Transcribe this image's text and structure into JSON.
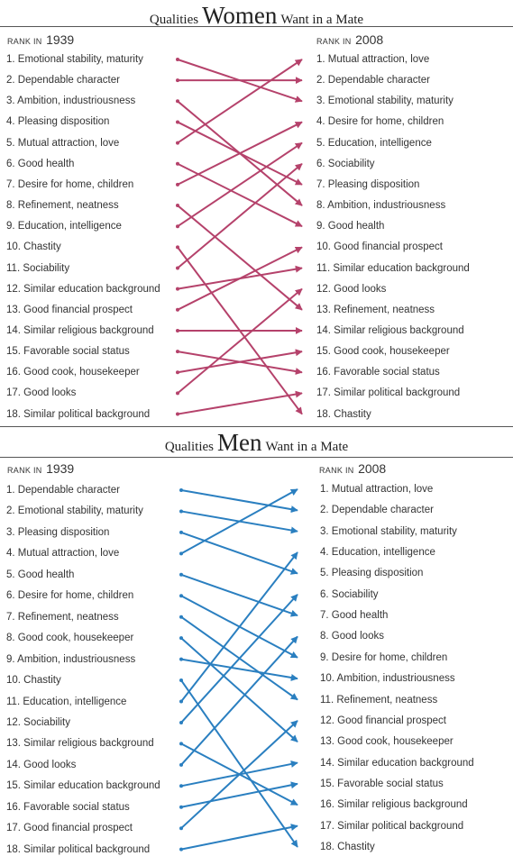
{
  "women": {
    "title_small_1": "Qualities",
    "title_big": "Women",
    "title_small_2": "Want in a Mate",
    "rank_label": "RANK IN",
    "year_left": "1939",
    "year_right": "2008",
    "color": "#b5426b",
    "left": [
      "1. Emotional stability, maturity",
      "2. Dependable character",
      "3. Ambition, industriousness",
      "4. Pleasing disposition",
      "5. Mutual attraction, love",
      "6. Good health",
      "7. Desire for home, children",
      "8. Refinement, neatness",
      "9. Education, intelligence",
      "10. Chastity",
      "11. Sociability",
      "12. Similar education background",
      "13. Good financial prospect",
      "14. Similar religious background",
      "15. Favorable social status",
      "16. Good cook, housekeeper",
      "17. Good looks",
      "18. Similar political background"
    ],
    "right": [
      "1. Mutual attraction, love",
      "2. Dependable character",
      "3. Emotional stability, maturity",
      "4. Desire for home, children",
      "5. Education, intelligence",
      "6. Sociability",
      "7. Pleasing disposition",
      "8. Ambition, industriousness",
      "9. Good health",
      "10. Good financial prospect",
      "11. Similar education background",
      "12. Good looks",
      "13. Refinement, neatness",
      "14. Similar religious background",
      "15. Good cook, housekeeper",
      "16. Favorable social status",
      "17. Similar political background",
      "18. Chastity"
    ],
    "mapping": [
      3,
      2,
      8,
      7,
      1,
      9,
      4,
      13,
      5,
      18,
      6,
      11,
      10,
      14,
      16,
      15,
      12,
      17
    ]
  },
  "men": {
    "title_small_1": "Qualities",
    "title_big": "Men",
    "title_small_2": "Want in a Mate",
    "rank_label": "RANK IN",
    "year_left": "1939",
    "year_right": "2008",
    "color": "#2a7fc0",
    "left": [
      "1. Dependable character",
      "2. Emotional stability, maturity",
      "3. Pleasing disposition",
      "4. Mutual attraction, love",
      "5. Good health",
      "6. Desire for home, children",
      "7. Refinement, neatness",
      "8. Good cook, housekeeper",
      "9. Ambition, industriousness",
      "10. Chastity",
      "11. Education, intelligence",
      "12. Sociability",
      "13. Similar religious background",
      "14. Good looks",
      "15. Similar education background",
      "16. Favorable social status",
      "17. Good financial prospect",
      "18. Similar political background"
    ],
    "right": [
      "1. Mutual attraction, love",
      "2. Dependable character",
      "3. Emotional stability, maturity",
      "4. Education, intelligence",
      "5. Pleasing disposition",
      "6. Sociability",
      "7. Good health",
      "8. Good looks",
      "9. Desire for home, children",
      "10. Ambition, industriousness",
      "11. Refinement, neatness",
      "12. Good financial prospect",
      "13. Good cook, housekeeper",
      "14. Similar education background",
      "15. Favorable social status",
      "16. Similar religious background",
      "17. Similar political background",
      "18. Chastity"
    ],
    "mapping": [
      2,
      3,
      5,
      1,
      7,
      9,
      11,
      13,
      10,
      18,
      4,
      6,
      16,
      8,
      14,
      15,
      12,
      17
    ]
  }
}
